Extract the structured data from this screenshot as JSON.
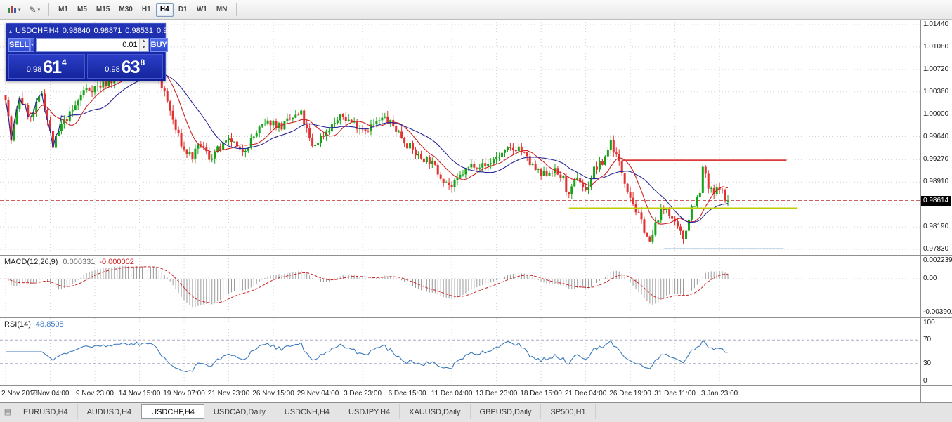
{
  "icons": {
    "caret": "▾",
    "pencil": "✎",
    "collapse": "▴",
    "spin_up": "▲",
    "spin_down": "▼",
    "vol_dropdown": "▾",
    "tab_list": "▤"
  },
  "toolbar": {
    "timeframes": [
      {
        "label": "M1",
        "active": false
      },
      {
        "label": "M5",
        "active": false
      },
      {
        "label": "M15",
        "active": false
      },
      {
        "label": "M30",
        "active": false
      },
      {
        "label": "H1",
        "active": false
      },
      {
        "label": "H4",
        "active": true
      },
      {
        "label": "D1",
        "active": false
      },
      {
        "label": "W1",
        "active": false
      },
      {
        "label": "MN",
        "active": false
      }
    ]
  },
  "trade_panel": {
    "symbol": "USDCHF,H4",
    "sell_label": "SELL",
    "buy_label": "BUY",
    "volume": "0.01",
    "sell_price": {
      "prefix": "0.98",
      "big": "61",
      "sup": "4"
    },
    "buy_price": {
      "prefix": "0.98",
      "big": "63",
      "sup": "8"
    }
  },
  "tabs": [
    {
      "label": "EURUSD,H4",
      "active": false
    },
    {
      "label": "AUDUSD,H4",
      "active": false
    },
    {
      "label": "USDCHF,H4",
      "active": true
    },
    {
      "label": "USDCAD,Daily",
      "active": false
    },
    {
      "label": "USDCNH,H4",
      "active": false
    },
    {
      "label": "USDJPY,H4",
      "active": false
    },
    {
      "label": "XAUUSD,Daily",
      "active": false
    },
    {
      "label": "GBPUSD,Daily",
      "active": false
    },
    {
      "label": "SP500,H1",
      "active": false
    }
  ],
  "chart_data": [
    {
      "type": "candlestick",
      "symbol": "USDCHF",
      "timeframe": "H4",
      "ohlc": {
        "open": "0.98840",
        "high": "0.98871",
        "low": "0.98531",
        "close": "0.98614"
      },
      "current_price": 0.98614,
      "current_price_text": "0.98614",
      "y_range": {
        "top": 1.0144,
        "bottom": 0.9783
      },
      "y_axis_labels": [
        "1.01440",
        "1.01080",
        "1.00720",
        "1.00360",
        "1.00000",
        "0.99640",
        "0.99270",
        "0.98910",
        "0.98550",
        "0.98190",
        "0.97830"
      ],
      "x_labels": [
        "2 Nov 2018",
        "7 Nov 04:00",
        "9 Nov 23:00",
        "14 Nov 15:00",
        "19 Nov 07:00",
        "21 Nov 23:00",
        "26 Nov 15:00",
        "29 Nov 04:00",
        "3 Dec 23:00",
        "6 Dec 15:00",
        "11 Dec 04:00",
        "13 Dec 23:00",
        "18 Dec 15:00",
        "21 Dec 04:00",
        "26 Dec 19:00",
        "31 Dec 11:00",
        "3 Jan 23:00"
      ],
      "bars_total": 260,
      "bars_per_label": 16,
      "price_path_anchors": [
        [
          0,
          1.003
        ],
        [
          2,
          0.9958
        ],
        [
          5,
          1.0028
        ],
        [
          9,
          0.9992
        ],
        [
          13,
          1.0035
        ],
        [
          17,
          0.9948
        ],
        [
          20,
          0.9982
        ],
        [
          24,
          1.0005
        ],
        [
          28,
          1.0038
        ],
        [
          34,
          1.0046
        ],
        [
          40,
          1.0058
        ],
        [
          46,
          1.0068
        ],
        [
          52,
          1.0076
        ],
        [
          55,
          1.0058
        ],
        [
          58,
          1.002
        ],
        [
          61,
          0.9975
        ],
        [
          64,
          0.9942
        ],
        [
          67,
          0.9932
        ],
        [
          70,
          0.9952
        ],
        [
          73,
          0.993
        ],
        [
          77,
          0.9946
        ],
        [
          81,
          0.9958
        ],
        [
          84,
          0.9938
        ],
        [
          87,
          0.9952
        ],
        [
          91,
          0.9976
        ],
        [
          95,
          0.9988
        ],
        [
          99,
          0.998
        ],
        [
          103,
          0.9994
        ],
        [
          106,
          1.0
        ],
        [
          110,
          0.9946
        ],
        [
          114,
          0.9968
        ],
        [
          118,
          0.9987
        ],
        [
          121,
          0.9996
        ],
        [
          125,
          0.9985
        ],
        [
          129,
          0.9976
        ],
        [
          133,
          0.9986
        ],
        [
          136,
          0.9994
        ],
        [
          140,
          0.9976
        ],
        [
          144,
          0.9952
        ],
        [
          148,
          0.9932
        ],
        [
          152,
          0.9926
        ],
        [
          156,
          0.9901
        ],
        [
          160,
          0.9882
        ],
        [
          164,
          0.9906
        ],
        [
          168,
          0.9921
        ],
        [
          172,
          0.9916
        ],
        [
          176,
          0.9931
        ],
        [
          180,
          0.9941
        ],
        [
          184,
          0.9947
        ],
        [
          188,
          0.9921
        ],
        [
          192,
          0.9901
        ],
        [
          196,
          0.9911
        ],
        [
          200,
          0.9896
        ],
        [
          202,
          0.9866
        ],
        [
          205,
          0.9901
        ],
        [
          208,
          0.9876
        ],
        [
          211,
          0.9911
        ],
        [
          214,
          0.9921
        ],
        [
          217,
          0.9956
        ],
        [
          220,
          0.9921
        ],
        [
          223,
          0.9881
        ],
        [
          226,
          0.9846
        ],
        [
          229,
          0.9816
        ],
        [
          231,
          0.9791
        ],
        [
          234,
          0.9836
        ],
        [
          237,
          0.9851
        ],
        [
          240,
          0.9821
        ],
        [
          243,
          0.9801
        ],
        [
          246,
          0.9851
        ],
        [
          249,
          0.9871
        ],
        [
          250,
          0.9916
        ],
        [
          252,
          0.9881
        ],
        [
          254,
          0.9871
        ],
        [
          256,
          0.9886
        ],
        [
          258,
          0.9861
        ],
        [
          259,
          0.98614
        ]
      ],
      "levels": [
        {
          "name": "resistance-line",
          "price": 0.9926,
          "color": "#dd3b3b",
          "width": 2,
          "start_bar": 221,
          "end_bar": 280
        },
        {
          "name": "support-line-yellow",
          "price": 0.9849,
          "color": "#bfcc00",
          "width": 2,
          "start_bar": 202,
          "end_bar": 284
        },
        {
          "name": "support-line-blue",
          "price": 0.9784,
          "color": "#6f9fc8",
          "width": 1,
          "start_bar": 236,
          "end_bar": 279
        }
      ],
      "moving_averages": [
        {
          "period": 10,
          "color": "#cc2222"
        },
        {
          "period": 21,
          "color": "#26269a"
        }
      ],
      "colors": {
        "up": "#17a317",
        "down": "#e23232",
        "grid": "#d2d2d2",
        "bid_line": "#d06060"
      }
    },
    {
      "type": "macd",
      "label": "MACD(12,26,9)",
      "params": [
        12,
        26,
        9
      ],
      "values_text": [
        "0.000331",
        "-0.000002"
      ],
      "y_labels": [
        "0.002239",
        "0.00",
        "-0.003901"
      ],
      "y_range": {
        "top": 0.002239,
        "bottom": -0.003901
      },
      "colors": {
        "histogram": "#9a9a9a",
        "signal": "#cc2222",
        "zero": "#bbbbbb"
      }
    },
    {
      "type": "rsi",
      "label": "RSI(14)",
      "period": 14,
      "value_text": "48.8505",
      "levels": [
        70,
        30
      ],
      "y_labels": [
        "100",
        "70",
        "30",
        "0"
      ],
      "y_range": [
        0,
        100
      ],
      "colors": {
        "line": "#3a7abd",
        "level": "#a8a8c0"
      }
    }
  ]
}
